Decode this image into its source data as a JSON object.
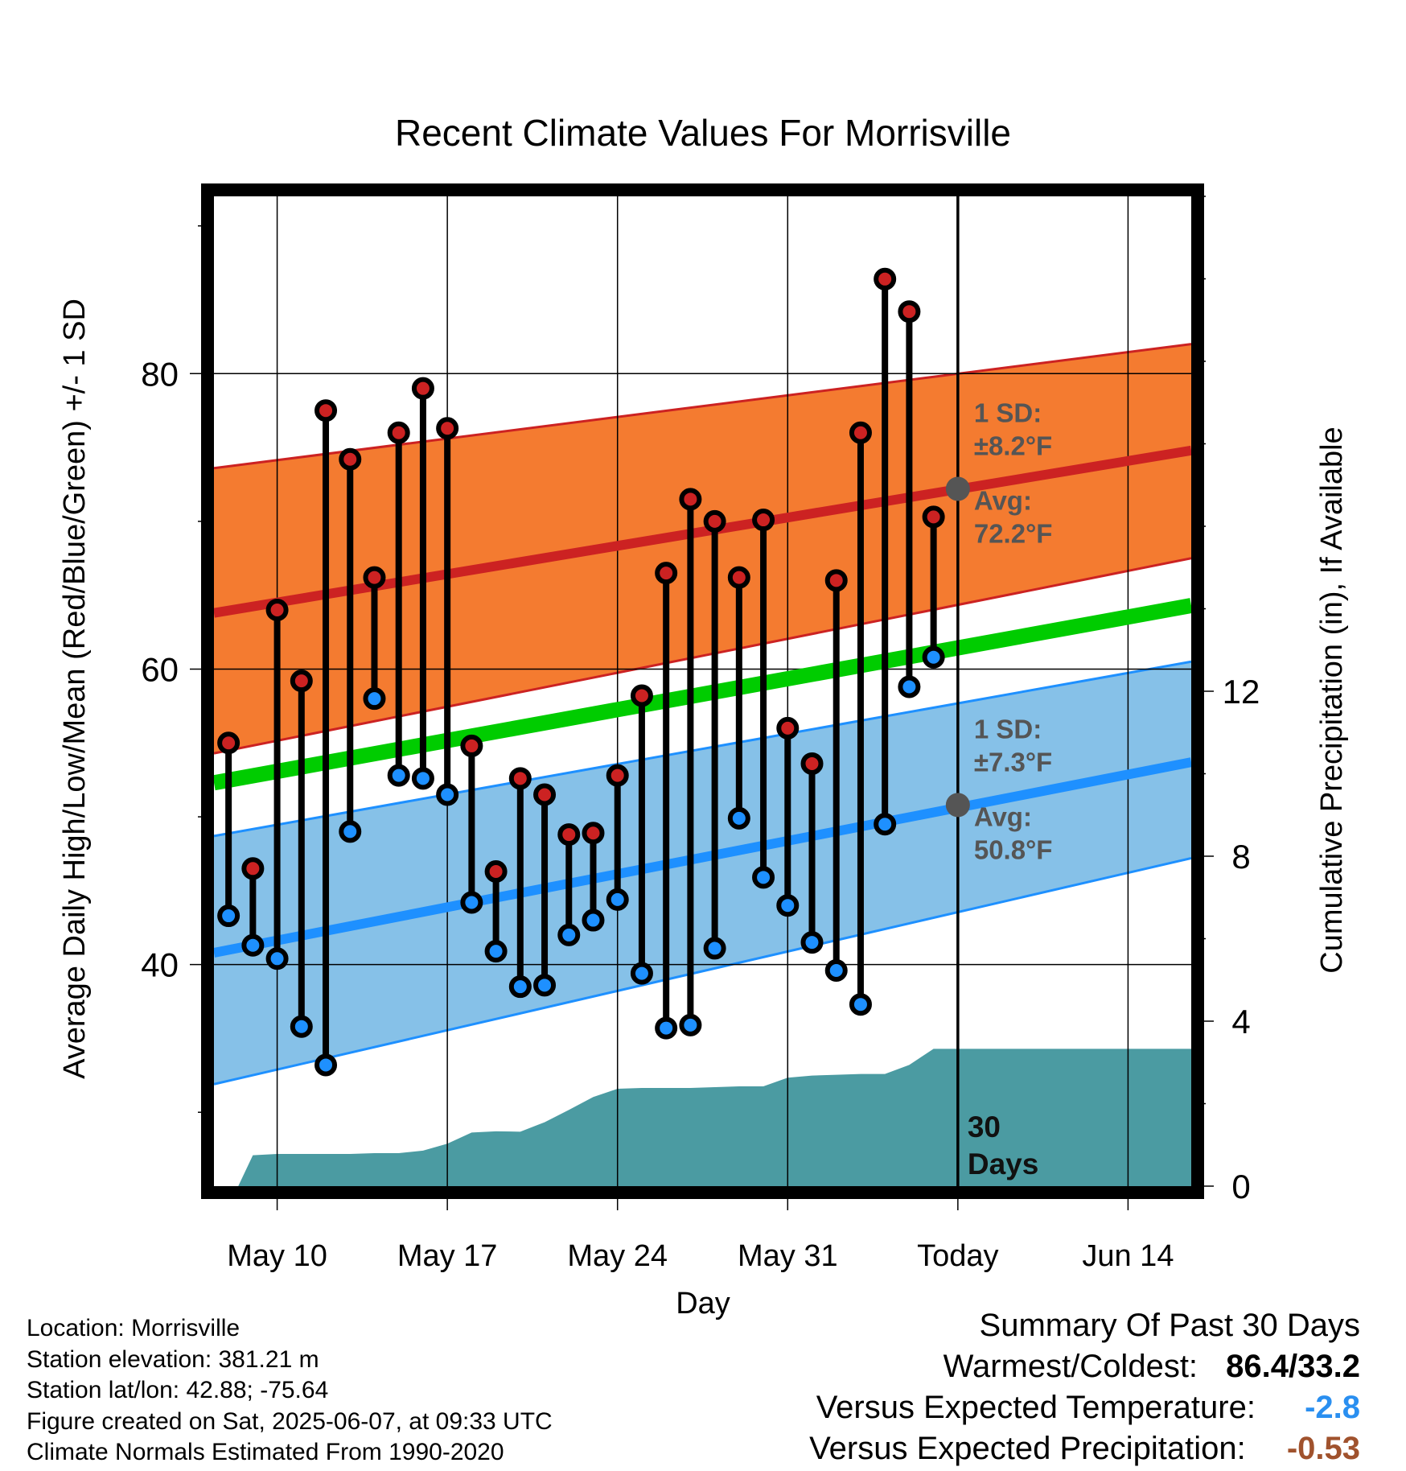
{
  "chart_data": {
    "type": "line",
    "title": "Recent Climate Values For Morrisville",
    "xlabel": "Day",
    "ylabel": "Average Daily High/Low/Mean (Red/Blue/Green) +/- 1 SD",
    "y2label": "Cumulative Precipitation (in), If Available",
    "ylim": [
      25,
      92
    ],
    "y2lim": [
      0,
      24
    ],
    "y_ticks": [
      "40",
      "60",
      "80"
    ],
    "y2_ticks": [
      "0",
      "4",
      "8",
      "12"
    ],
    "x_ticks": [
      "May 10",
      "May 17",
      "May 24",
      "May 31",
      "Today",
      "Jun 14"
    ],
    "x_tick_days": [
      0,
      7,
      14,
      21,
      28,
      35
    ],
    "xlim": [
      -2.6,
      37.6
    ],
    "grid": true,
    "today_day": 28,
    "days": [
      -2,
      -1,
      0,
      1,
      2,
      3,
      4,
      5,
      6,
      7,
      8,
      9,
      10,
      11,
      12,
      13,
      14,
      15,
      16,
      17,
      18,
      19,
      20,
      21,
      22,
      23,
      24,
      25,
      26,
      27
    ],
    "highs": [
      55.0,
      46.5,
      64.0,
      59.2,
      77.5,
      74.2,
      66.2,
      76.0,
      79.0,
      76.3,
      54.8,
      46.3,
      52.6,
      51.5,
      48.8,
      48.9,
      52.8,
      58.2,
      66.5,
      71.5,
      70.0,
      66.2,
      70.1,
      56.0,
      53.6,
      66.0,
      76.0,
      86.4,
      84.2,
      70.3
    ],
    "lows": [
      43.3,
      41.3,
      40.4,
      35.8,
      33.2,
      49.0,
      58.0,
      52.8,
      52.6,
      51.5,
      44.2,
      40.9,
      38.5,
      38.6,
      42.0,
      43.0,
      44.4,
      39.4,
      35.7,
      35.9,
      41.1,
      49.9,
      45.9,
      44.0,
      41.5,
      39.6,
      37.3,
      49.5,
      58.8,
      60.8
    ],
    "normal_high": {
      "avg": [
        63.8,
        74.8
      ],
      "upper": [
        73.6,
        82.0
      ],
      "lower": [
        54.3,
        67.5
      ],
      "sd_label": "1 SD:",
      "sd_value": "±8.2°F",
      "avg_label": "Avg:",
      "avg_value": "72.2°F",
      "today_avg": 72.2
    },
    "normal_mean": [
      52.3,
      64.3
    ],
    "normal_low": {
      "avg": [
        40.8,
        53.7
      ],
      "upper": [
        48.7,
        60.5
      ],
      "lower": [
        31.9,
        47.2
      ],
      "sd_label": "1 SD:",
      "sd_value": "±7.3°F",
      "avg_label": "Avg:",
      "avg_value": "50.8°F",
      "today_avg": 50.8
    },
    "precip_cumulative": {
      "days": [
        -2.2,
        -1.6,
        -1,
        0,
        1,
        2,
        3,
        4,
        5,
        6,
        7,
        8,
        9,
        10,
        11,
        12,
        13,
        14,
        15,
        16,
        17,
        18,
        19,
        20,
        21,
        22,
        23,
        24,
        25,
        26,
        27,
        37.6
      ],
      "values": [
        0,
        0,
        0.75,
        0.78,
        0.78,
        0.78,
        0.78,
        0.8,
        0.8,
        0.86,
        1.03,
        1.3,
        1.33,
        1.32,
        1.55,
        1.85,
        2.16,
        2.36,
        2.38,
        2.38,
        2.38,
        2.4,
        2.42,
        2.42,
        2.63,
        2.68,
        2.7,
        2.72,
        2.72,
        2.94,
        3.33,
        3.33
      ]
    },
    "period_label": "30\nDays",
    "colors": {
      "high_band": "#f47b30",
      "high_line": "#cc2222",
      "low_band": "#86c1e8",
      "low_line": "#1e90ff",
      "mean_line": "#00cc00",
      "precip": "#4b9ba2",
      "high_marker": "#cc2222",
      "low_marker": "#1e90ff",
      "annotation": "#555555"
    }
  },
  "station_info": {
    "location": "Location: Morrisville",
    "elevation": "Station elevation: 381.21 m",
    "latlon": "Station lat/lon: 42.88; -75.64",
    "created": "Figure created on Sat, 2025-06-07, at 09:33 UTC",
    "normals": "Climate Normals Estimated From 1990-2020"
  },
  "summary": {
    "heading": "Summary Of Past 30 Days",
    "warmest_label": "Warmest/Coldest:",
    "warmest_value": "86.4/33.2",
    "temp_label": "Versus Expected Temperature:",
    "temp_value": "-2.8",
    "temp_color": "#2a8ff0",
    "precip_label": "Versus Expected Precipitation:",
    "precip_value": "-0.53",
    "precip_color": "#a0522d"
  }
}
